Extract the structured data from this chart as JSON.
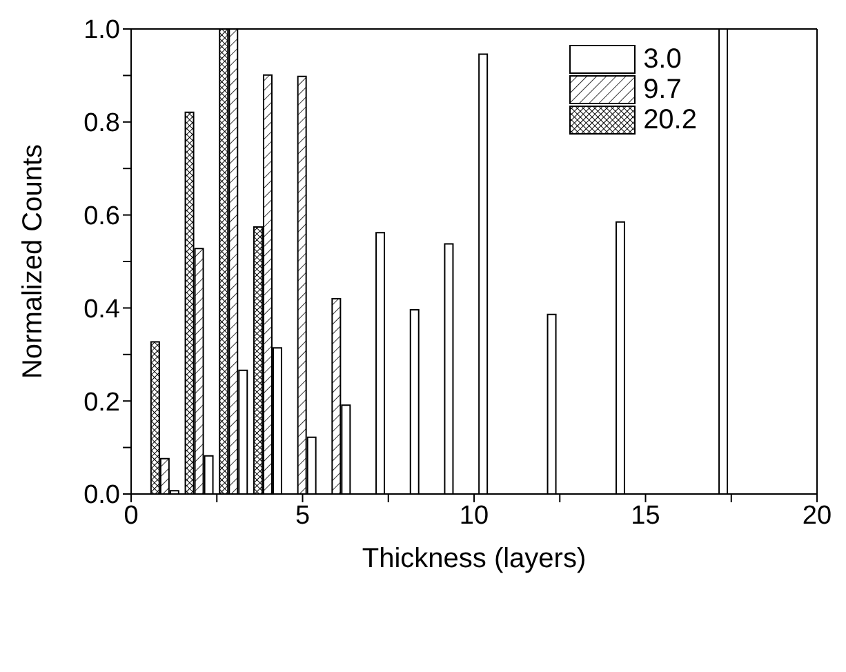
{
  "chart_data": {
    "type": "bar",
    "xlabel": "Thickness (layers)",
    "ylabel": "Normalized Counts",
    "x": [
      1,
      2,
      3,
      4,
      5,
      6,
      7,
      8,
      9,
      10,
      11,
      12,
      13,
      14,
      15,
      16,
      17
    ],
    "series": [
      {
        "name": "3.0",
        "color": "#000000",
        "values": [
          0.007,
          0.082,
          0.266,
          0.314,
          0.122,
          0.191,
          0.562,
          0.396,
          0.538,
          0.946,
          null,
          0.386,
          null,
          0.585,
          null,
          null,
          1.0
        ]
      },
      {
        "name": "9.7",
        "color": "#000000",
        "values": [
          0.076,
          0.528,
          1.0,
          0.901,
          0.898,
          0.42,
          null,
          null,
          null,
          null,
          null,
          null,
          null,
          null,
          null,
          null,
          null
        ]
      },
      {
        "name": "20.2",
        "color": "#000000",
        "values": [
          0.327,
          0.821,
          1.0,
          0.574,
          null,
          null,
          null,
          null,
          null,
          null,
          null,
          null,
          null,
          null,
          null,
          null,
          null
        ]
      }
    ],
    "xlim": [
      0,
      20
    ],
    "xticks": [
      0,
      {
        "value": 2.5,
        "label": null
      },
      5,
      {
        "value": 7.5,
        "label": null
      },
      10,
      {
        "value": 12.5,
        "label": null
      },
      15,
      {
        "value": 17.5,
        "label": null
      },
      20
    ],
    "ylim": [
      0,
      1
    ],
    "yticks": [
      {
        "value": 0,
        "label": "0.0"
      },
      {
        "value": 0.1,
        "label": null
      },
      {
        "value": 0.2,
        "label": "0.2"
      },
      {
        "value": 0.3,
        "label": null
      },
      {
        "value": 0.4,
        "label": "0.4"
      },
      {
        "value": 0.5,
        "label": null
      },
      {
        "value": 0.6,
        "label": "0.6"
      },
      {
        "value": 0.7,
        "label": null
      },
      {
        "value": 0.8,
        "label": "0.8"
      },
      {
        "value": 0.9,
        "label": null
      },
      {
        "value": 1,
        "label": "1.0"
      }
    ],
    "legend": "top right",
    "grid": false
  }
}
